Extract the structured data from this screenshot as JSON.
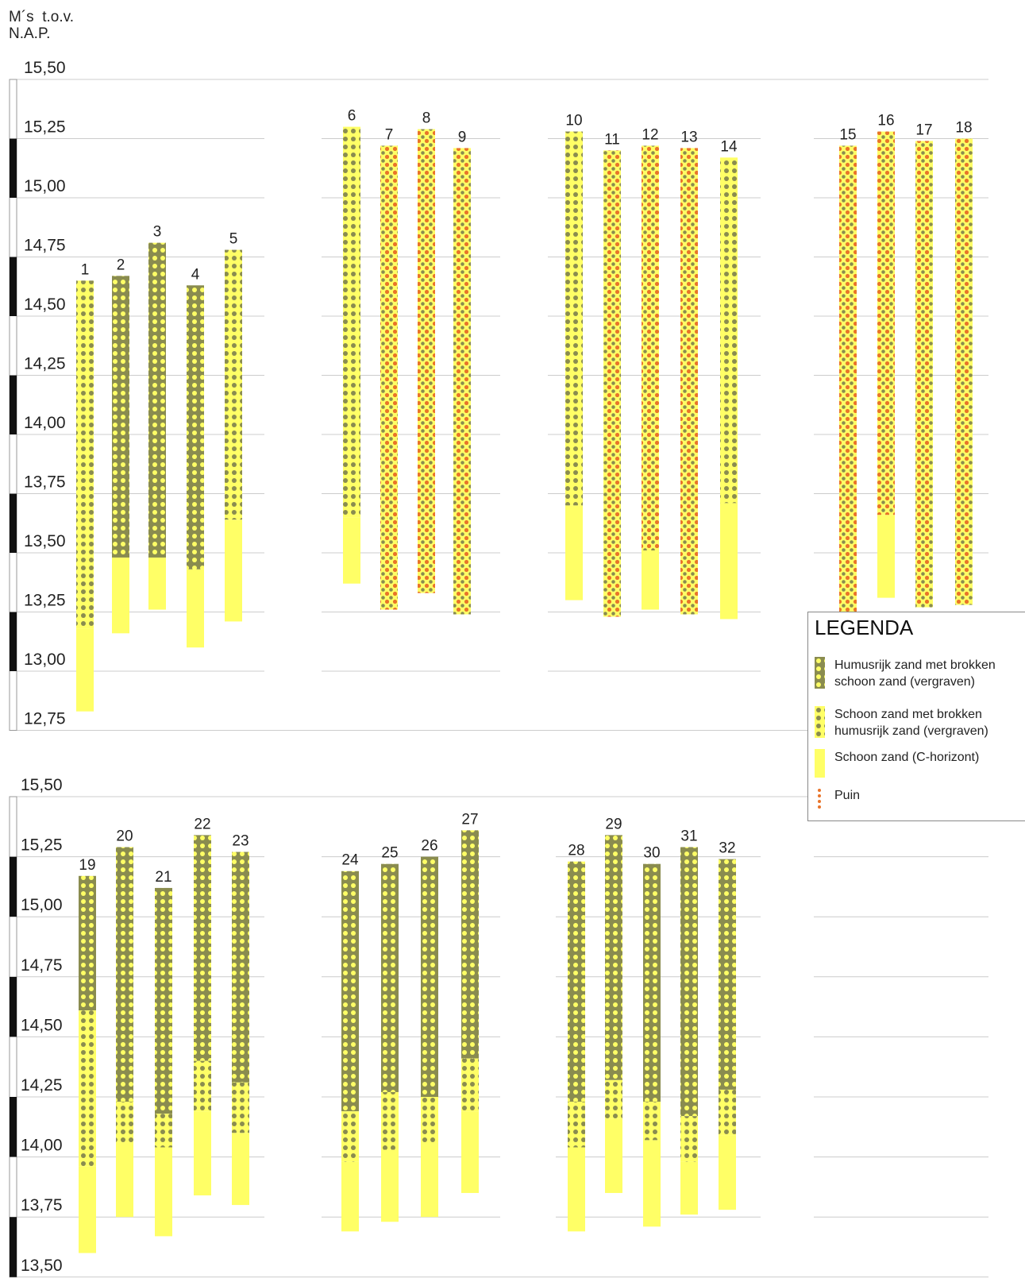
{
  "y_axis_title": "M´s  t.o.v.\nN.A.P.",
  "legend": {
    "title": "LEGENDA",
    "items": [
      {
        "key": "humus",
        "label": "Humusrijk zand met brokken\nschoon zand (vergraven)"
      },
      {
        "key": "clean_mixed",
        "label": "Schoon zand met brokken\nhumusrijk zand (vergraven)"
      },
      {
        "key": "clean",
        "label": "Schoon zand (C-horizont)"
      },
      {
        "key": "puin",
        "label": "Puin"
      }
    ]
  },
  "colors": {
    "yellow": "#ffff66",
    "olive": "#8a8c4f",
    "puin": "#e8742a",
    "grid": "#cccccc"
  },
  "chart_data": [
    {
      "type": "bar",
      "panel": "top",
      "yticks": [
        "15,50",
        "15,25",
        "15,00",
        "14,75",
        "14,50",
        "14,25",
        "14,00",
        "13,75",
        "13,50",
        "13,25",
        "13,00",
        "12,75"
      ],
      "ylim": [
        12.75,
        15.5
      ],
      "borings": [
        {
          "id": "1",
          "top": 14.65,
          "layers": [
            {
              "type": "clean_mixed",
              "bottom": 13.18
            },
            {
              "type": "clean",
              "bottom": 12.83
            }
          ]
        },
        {
          "id": "2",
          "top": 14.67,
          "layers": [
            {
              "type": "humus",
              "bottom": 13.48
            },
            {
              "type": "clean",
              "bottom": 13.16
            }
          ]
        },
        {
          "id": "3",
          "top": 14.81,
          "layers": [
            {
              "type": "humus",
              "bottom": 13.48
            },
            {
              "type": "clean",
              "bottom": 13.26
            }
          ]
        },
        {
          "id": "4",
          "top": 14.63,
          "layers": [
            {
              "type": "humus",
              "bottom": 13.43
            },
            {
              "type": "clean",
              "bottom": 13.1
            }
          ]
        },
        {
          "id": "5",
          "top": 14.78,
          "layers": [
            {
              "type": "clean_mixed",
              "bottom": 13.64
            },
            {
              "type": "clean",
              "bottom": 13.21
            }
          ]
        },
        {
          "id": "6",
          "top": 15.3,
          "layers": [
            {
              "type": "clean_mixed",
              "bottom": 13.65
            },
            {
              "type": "clean",
              "bottom": 13.37
            }
          ]
        },
        {
          "id": "7",
          "top": 15.22,
          "layers": [
            {
              "type": "clean_mixed_puin",
              "bottom": 13.26
            }
          ]
        },
        {
          "id": "8",
          "top": 15.29,
          "layers": [
            {
              "type": "clean_mixed_puin",
              "bottom": 13.33
            }
          ]
        },
        {
          "id": "9",
          "top": 15.21,
          "layers": [
            {
              "type": "clean_mixed_puin",
              "bottom": 13.24
            }
          ]
        },
        {
          "id": "10",
          "top": 15.28,
          "layers": [
            {
              "type": "clean_mixed",
              "bottom": 13.7
            },
            {
              "type": "clean",
              "bottom": 13.3
            }
          ]
        },
        {
          "id": "11",
          "top": 15.2,
          "layers": [
            {
              "type": "clean_mixed_puin",
              "bottom": 13.23
            }
          ]
        },
        {
          "id": "12",
          "top": 15.22,
          "layers": [
            {
              "type": "clean_mixed_puin",
              "bottom": 13.51
            },
            {
              "type": "clean",
              "bottom": 13.26
            }
          ]
        },
        {
          "id": "13",
          "top": 15.21,
          "layers": [
            {
              "type": "clean_mixed_puin",
              "bottom": 13.24
            }
          ]
        },
        {
          "id": "14",
          "top": 15.17,
          "layers": [
            {
              "type": "clean_mixed",
              "bottom": 13.71
            },
            {
              "type": "clean",
              "bottom": 13.22
            }
          ]
        },
        {
          "id": "15",
          "top": 15.22,
          "layers": [
            {
              "type": "clean_mixed_puin",
              "bottom": 13.25
            }
          ]
        },
        {
          "id": "16",
          "top": 15.28,
          "layers": [
            {
              "type": "clean_mixed_puin",
              "bottom": 13.66
            },
            {
              "type": "clean",
              "bottom": 13.31
            }
          ]
        },
        {
          "id": "17",
          "top": 15.24,
          "layers": [
            {
              "type": "clean_mixed_puin",
              "bottom": 13.27
            }
          ]
        },
        {
          "id": "18",
          "top": 15.25,
          "layers": [
            {
              "type": "clean_mixed_puin",
              "bottom": 13.28
            }
          ]
        }
      ]
    },
    {
      "type": "bar",
      "panel": "bottom",
      "yticks": [
        "15,50",
        "15,25",
        "15,00",
        "14,75",
        "14,50",
        "14,25",
        "14,00",
        "13,75",
        "13,50"
      ],
      "ylim": [
        13.5,
        15.5
      ],
      "borings": [
        {
          "id": "19",
          "top": 15.17,
          "layers": [
            {
              "type": "humus",
              "bottom": 14.61
            },
            {
              "type": "clean_mixed",
              "bottom": 13.96
            },
            {
              "type": "clean",
              "bottom": 13.6
            }
          ]
        },
        {
          "id": "20",
          "top": 15.29,
          "layers": [
            {
              "type": "humus",
              "bottom": 14.23
            },
            {
              "type": "clean_mixed",
              "bottom": 14.06
            },
            {
              "type": "clean",
              "bottom": 13.75
            }
          ]
        },
        {
          "id": "21",
          "top": 15.12,
          "layers": [
            {
              "type": "humus",
              "bottom": 14.18
            },
            {
              "type": "clean_mixed",
              "bottom": 14.04
            },
            {
              "type": "clean",
              "bottom": 13.67
            }
          ]
        },
        {
          "id": "22",
          "top": 15.34,
          "layers": [
            {
              "type": "humus",
              "bottom": 14.4
            },
            {
              "type": "clean_mixed",
              "bottom": 14.19
            },
            {
              "type": "clean",
              "bottom": 13.84
            }
          ]
        },
        {
          "id": "23",
          "top": 15.27,
          "layers": [
            {
              "type": "humus",
              "bottom": 14.31
            },
            {
              "type": "clean_mixed",
              "bottom": 14.1
            },
            {
              "type": "clean",
              "bottom": 13.8
            }
          ]
        },
        {
          "id": "24",
          "top": 15.19,
          "layers": [
            {
              "type": "humus",
              "bottom": 14.19
            },
            {
              "type": "clean_mixed",
              "bottom": 13.98
            },
            {
              "type": "clean",
              "bottom": 13.69
            }
          ]
        },
        {
          "id": "25",
          "top": 15.22,
          "layers": [
            {
              "type": "humus",
              "bottom": 14.27
            },
            {
              "type": "clean_mixed",
              "bottom": 14.03
            },
            {
              "type": "clean",
              "bottom": 13.73
            }
          ]
        },
        {
          "id": "26",
          "top": 15.25,
          "layers": [
            {
              "type": "humus",
              "bottom": 14.25
            },
            {
              "type": "clean_mixed",
              "bottom": 14.05
            },
            {
              "type": "clean",
              "bottom": 13.75
            }
          ]
        },
        {
          "id": "27",
          "top": 15.36,
          "layers": [
            {
              "type": "humus",
              "bottom": 14.41
            },
            {
              "type": "clean_mixed",
              "bottom": 14.19
            },
            {
              "type": "clean",
              "bottom": 13.85
            }
          ]
        },
        {
          "id": "28",
          "top": 15.23,
          "layers": [
            {
              "type": "humus",
              "bottom": 14.23
            },
            {
              "type": "clean_mixed",
              "bottom": 14.04
            },
            {
              "type": "clean",
              "bottom": 13.69
            }
          ]
        },
        {
          "id": "29",
          "top": 15.34,
          "layers": [
            {
              "type": "humus",
              "bottom": 14.32
            },
            {
              "type": "clean_mixed",
              "bottom": 14.16
            },
            {
              "type": "clean",
              "bottom": 13.85
            }
          ]
        },
        {
          "id": "30",
          "top": 15.22,
          "layers": [
            {
              "type": "humus",
              "bottom": 14.23
            },
            {
              "type": "clean_mixed",
              "bottom": 14.07
            },
            {
              "type": "clean",
              "bottom": 13.71
            }
          ]
        },
        {
          "id": "31",
          "top": 15.29,
          "layers": [
            {
              "type": "humus",
              "bottom": 14.17
            },
            {
              "type": "clean_mixed",
              "bottom": 13.98
            },
            {
              "type": "clean",
              "bottom": 13.76
            }
          ]
        },
        {
          "id": "32",
          "top": 15.24,
          "layers": [
            {
              "type": "humus",
              "bottom": 14.28
            },
            {
              "type": "clean_mixed",
              "bottom": 14.09
            },
            {
              "type": "clean",
              "bottom": 13.78
            }
          ]
        }
      ]
    }
  ]
}
